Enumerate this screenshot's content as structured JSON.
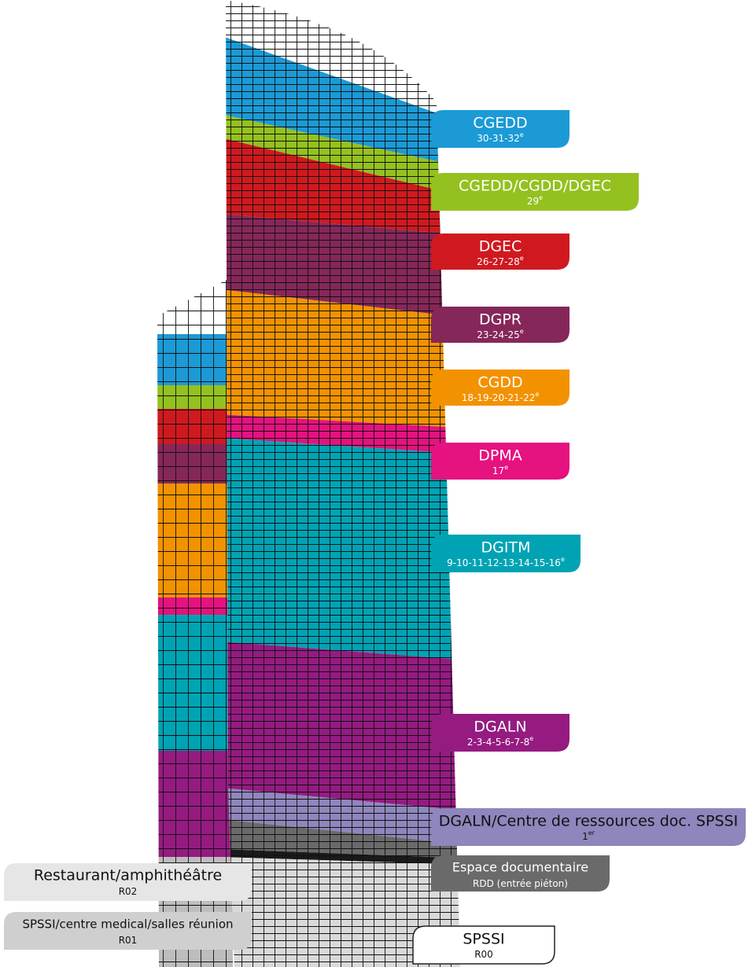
{
  "labels": [
    {
      "name": "CGEDD",
      "floors": "30-31-32",
      "sup": "e"
    },
    {
      "name": "CGEDD/CGDD/DGEC",
      "floors": "29",
      "sup": "e"
    },
    {
      "name": "DGEC",
      "floors": "26-27-28",
      "sup": "e"
    },
    {
      "name": "DGPR",
      "floors": "23-24-25",
      "sup": "e"
    },
    {
      "name": "CGDD",
      "floors": "18-19-20-21-22",
      "sup": "e"
    },
    {
      "name": "DPMA",
      "floors": "17",
      "sup": "e"
    },
    {
      "name": "DGITM",
      "floors": "9-10-11-12-13-14-15-16",
      "sup": "e"
    },
    {
      "name": "DGALN",
      "floors": "2-3-4-5-6-7-8",
      "sup": "e"
    },
    {
      "name": "DGALN/Centre de ressources doc. SPSSI",
      "floors": "1",
      "sup": "er"
    },
    {
      "name": "Espace documentaire",
      "floors": "RDD (entrée piéton)"
    },
    {
      "name": "Restaurant/amphithéâtre",
      "floors": "R02"
    },
    {
      "name": "SPSSI/centre medical/salles réunion",
      "floors": "R01"
    },
    {
      "name": "SPSSI",
      "floors": "R00"
    }
  ]
}
